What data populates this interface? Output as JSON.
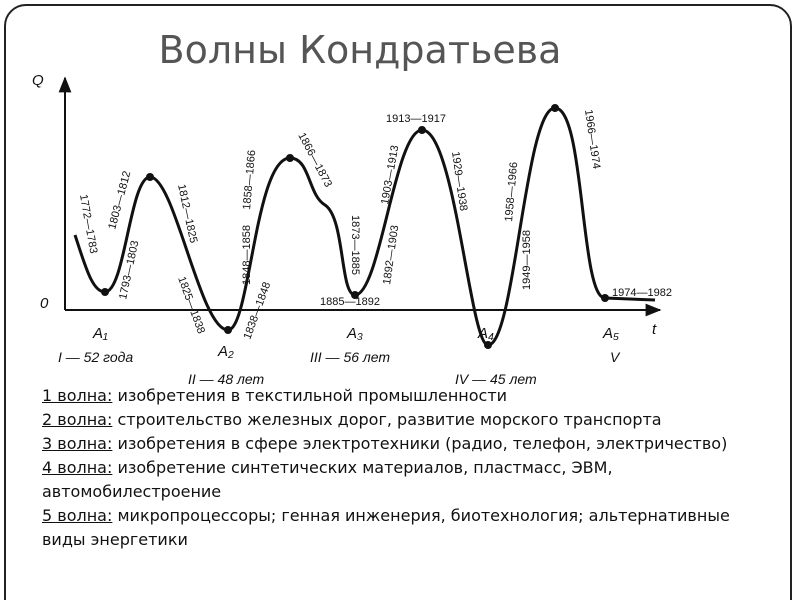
{
  "header": {
    "title": "Волны Кондратьева"
  },
  "diagram": {
    "axis": {
      "y": "Q",
      "x": "t",
      "origin": "0"
    },
    "points": [
      "A₁",
      "A₂",
      "A₃",
      "A₄",
      "A₅"
    ],
    "waves": [
      "I — 52 года",
      "II — 48 лет",
      "III — 56 лет",
      "IV — 45 лет",
      "V"
    ],
    "dates": [
      "1772—1783",
      "1803—1812",
      "1793—1803",
      "1812—1825",
      "1825—1838",
      "1848—1858",
      "1858—1866",
      "1838—1848",
      "1866—1873",
      "1873—1885",
      "1885—1892",
      "1892—1903",
      "1903—1913",
      "1913—1917",
      "1929—1938",
      "1958—1966",
      "1949—1958",
      "1966—1974",
      "1974—1982"
    ]
  },
  "list": [
    {
      "label": "1 волна:",
      "text": "изобретения в текстильной промышленности"
    },
    {
      "label": "2 волна:",
      "text": "строительство железных дорог, развитие морского транспорта"
    },
    {
      "label": "3 волна:",
      "text": "изобретения в сфере электротехники (радио, телефон, электричество)"
    },
    {
      "label": "4 волна:",
      "text": "изобретение синтетических материалов, пластмасс, ЭВМ, автомобилестроение"
    },
    {
      "label": "5 волна:",
      "text": "микропроцессоры; генная инженерия, биотехнология; альтернативные виды энергетики"
    }
  ]
}
